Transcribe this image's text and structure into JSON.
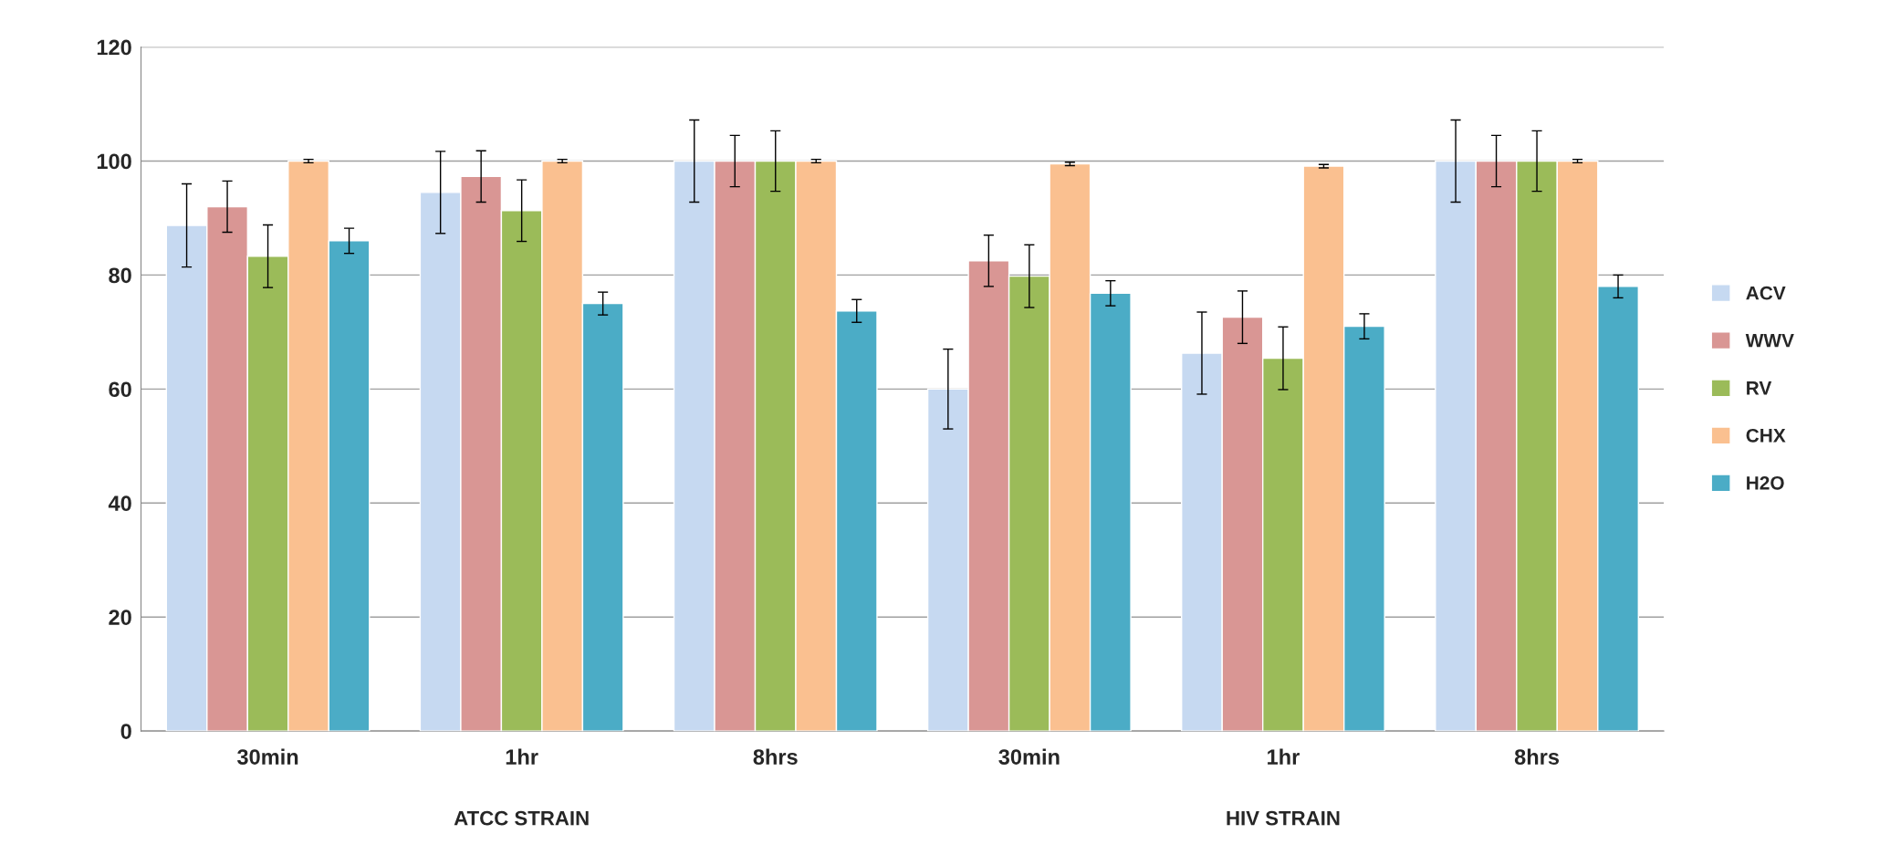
{
  "chart_data": {
    "type": "bar",
    "categories": [
      "30min",
      "1hr",
      "8hrs",
      "30min",
      "1hr",
      "8hrs"
    ],
    "annotations": [
      "ATCC STRAIN",
      "HIV STRAIN"
    ],
    "series": [
      {
        "name": "ACV",
        "color": "#c6d9f1",
        "values": [
          88.7,
          94.5,
          100,
          60,
          66.3,
          100
        ],
        "errors": [
          7.3,
          7.2,
          7.2,
          7,
          7.2,
          7.2
        ]
      },
      {
        "name": "WWV",
        "color": "#d99694",
        "values": [
          92,
          97.3,
          100,
          82.5,
          72.6,
          100
        ],
        "errors": [
          4.5,
          4.5,
          4.5,
          4.5,
          4.6,
          4.5
        ]
      },
      {
        "name": "RV",
        "color": "#9bbb59",
        "values": [
          83.3,
          91.3,
          100,
          79.8,
          65.4,
          100
        ],
        "errors": [
          5.5,
          5.4,
          5.3,
          5.5,
          5.5,
          5.3
        ]
      },
      {
        "name": "CHX",
        "color": "#fac090",
        "values": [
          100,
          100,
          100,
          99.5,
          99.1,
          100
        ],
        "errors": [
          0.3,
          0.3,
          0.3,
          0.3,
          0.3,
          0.3
        ]
      },
      {
        "name": "H2O",
        "color": "#4bacc6",
        "values": [
          86,
          75,
          73.7,
          76.8,
          71,
          78
        ],
        "errors": [
          2.2,
          2,
          2,
          2.2,
          2.2,
          2
        ]
      }
    ],
    "ylim": [
      0,
      120
    ],
    "yticks": [
      0,
      20,
      40,
      60,
      80,
      100,
      120
    ],
    "grid": "y",
    "legend": "right"
  }
}
